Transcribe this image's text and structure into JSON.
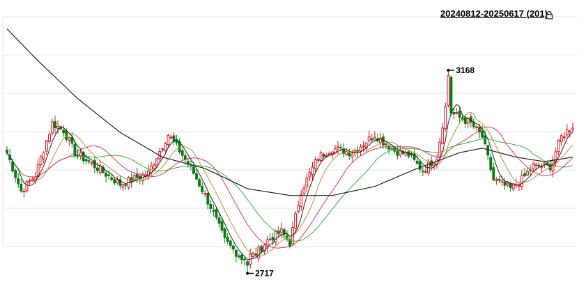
{
  "header": {
    "range_label": "20240812-20250617 (201)",
    "lock_icon": "lock-icon"
  },
  "annotations": {
    "high_label": "3168",
    "low_label": "2717"
  },
  "colors": {
    "up": "#e0101e",
    "down": "#0a7a14",
    "grid": "#e6e6e6",
    "ma5": "#222222",
    "ma10": "#b5913a",
    "ma20": "#e0306a",
    "ma30": "#33b233",
    "ma60": "#222222"
  },
  "chart_data": {
    "type": "candlestick",
    "period": "20240812-20250617",
    "bars": 201,
    "ylim": [
      2690,
      3290
    ],
    "grid": true,
    "high": {
      "value": 3168,
      "bar_index": 156
    },
    "low": {
      "value": 2717,
      "bar_index": 85
    },
    "close_path": [
      [
        0,
        2985
      ],
      [
        5,
        2900
      ],
      [
        10,
        2935
      ],
      [
        16,
        3050
      ],
      [
        20,
        3035
      ],
      [
        24,
        2985
      ],
      [
        30,
        2960
      ],
      [
        40,
        2915
      ],
      [
        50,
        2940
      ],
      [
        57,
        3025
      ],
      [
        61,
        2990
      ],
      [
        66,
        2940
      ],
      [
        72,
        2865
      ],
      [
        77,
        2790
      ],
      [
        83,
        2750
      ],
      [
        88,
        2760
      ],
      [
        92,
        2790
      ],
      [
        97,
        2810
      ],
      [
        100,
        2785
      ],
      [
        104,
        2900
      ],
      [
        110,
        2975
      ],
      [
        115,
        2995
      ],
      [
        122,
        2985
      ],
      [
        130,
        3025
      ],
      [
        137,
        2990
      ],
      [
        142,
        2980
      ],
      [
        147,
        2945
      ],
      [
        152,
        2975
      ],
      [
        155,
        3085
      ],
      [
        158,
        3070
      ],
      [
        164,
        3050
      ],
      [
        168,
        3020
      ],
      [
        172,
        2925
      ],
      [
        178,
        2905
      ],
      [
        182,
        2925
      ],
      [
        186,
        2955
      ],
      [
        192,
        2955
      ],
      [
        196,
        3020
      ],
      [
        200,
        3045
      ]
    ],
    "ma60_path": [
      [
        0,
        3260
      ],
      [
        10,
        3195
      ],
      [
        25,
        3105
      ],
      [
        40,
        3030
      ],
      [
        55,
        2975
      ],
      [
        70,
        2950
      ],
      [
        85,
        2905
      ],
      [
        100,
        2890
      ],
      [
        115,
        2890
      ],
      [
        130,
        2910
      ],
      [
        145,
        2950
      ],
      [
        160,
        2985
      ],
      [
        168,
        2995
      ],
      [
        180,
        2975
      ],
      [
        190,
        2965
      ],
      [
        200,
        2975
      ]
    ]
  }
}
